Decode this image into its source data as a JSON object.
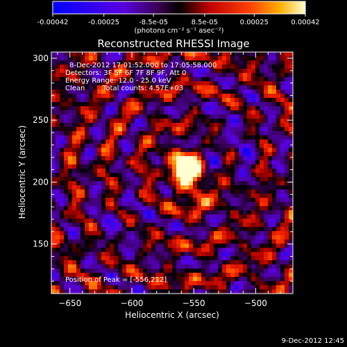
{
  "colorbar": {
    "tick_labels": [
      "-0.00042",
      "-0.00025",
      "-8.5e-05",
      "8.5e-05",
      "0.00025",
      "0.00042"
    ],
    "tick_values": [
      -0.00042,
      -0.00025,
      -8.5e-05,
      8.5e-05,
      0.00025,
      0.00042
    ],
    "range": [
      -0.00042,
      0.00042
    ],
    "unit_label": "(photons cm⁻² s⁻¹ asec⁻²)"
  },
  "info": {
    "line1": "8-Dec-2012 17:01:52.000 to 17:05:58.000",
    "line2": "Detectors: 3F 5F 6F 7F 8F 9F, Att 0",
    "line3": "Energy Range: 12.0 - 25.0 keV",
    "line4_method": "Clean",
    "line4_counts": "Total counts: 4.57E+03"
  },
  "peak_label": "Position of Peak = [-556,212]",
  "footer_date": "9-Dec-2012 12:45",
  "chart_data": {
    "type": "heatmap",
    "title": "Reconstructed RHESSI Image",
    "xlabel": "Heliocentric X (arcsec)",
    "ylabel": "Heliocentric Y (arcsec)",
    "xlim": [
      -665,
      -470
    ],
    "ylim": [
      110,
      305
    ],
    "x_ticks": [
      -650,
      -600,
      -550,
      -500
    ],
    "x_tick_labels": [
      "−650",
      "−600",
      "−550",
      "−500"
    ],
    "y_ticks": [
      150,
      200,
      250,
      300
    ],
    "y_tick_labels": [
      "150",
      "200",
      "250",
      "300"
    ],
    "peak": [
      -556,
      212
    ],
    "colormap": [
      "#0000ff",
      "#7a00ff",
      "#000000",
      "#ff0000",
      "#ff9900",
      "#ffffaa"
    ],
    "grid": false
  }
}
